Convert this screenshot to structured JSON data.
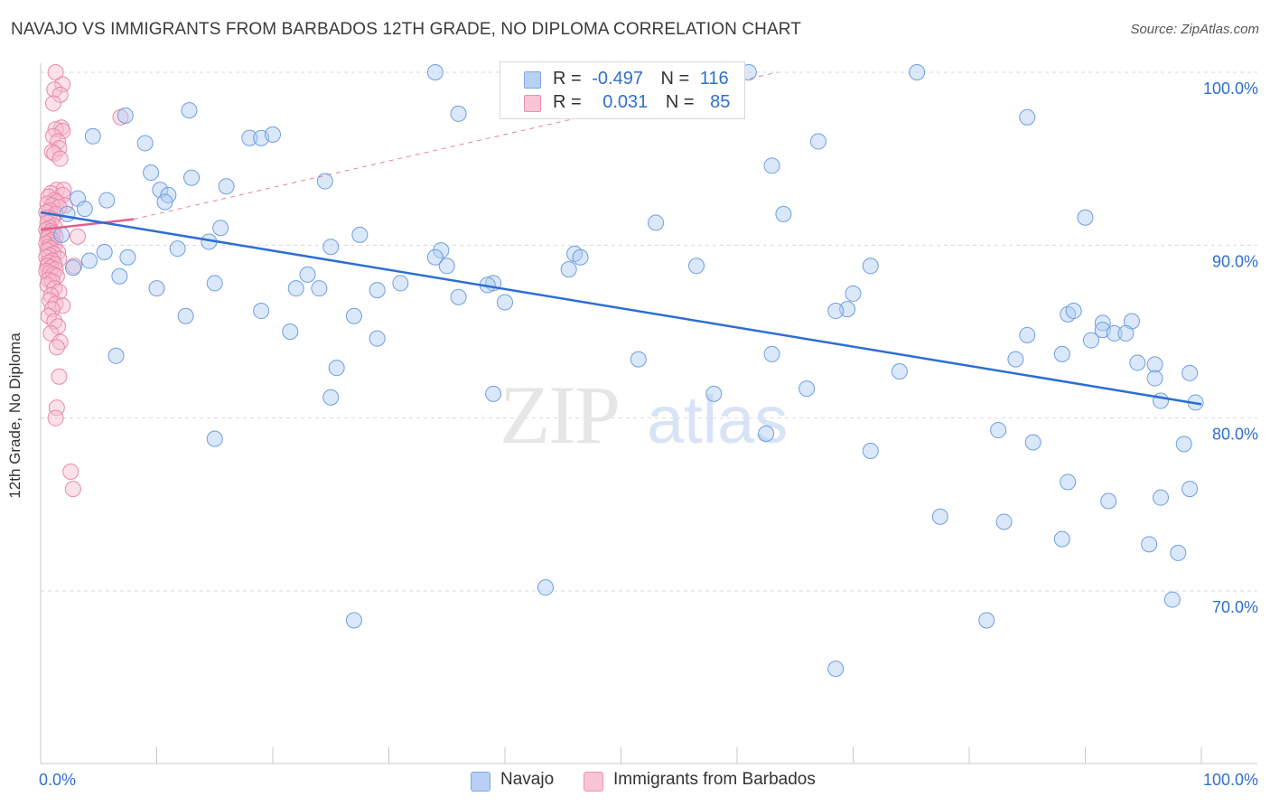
{
  "header": {
    "title": "NAVAJO VS IMMIGRANTS FROM BARBADOS 12TH GRADE, NO DIPLOMA CORRELATION CHART",
    "source": "Source: ZipAtlas.com"
  },
  "watermark": {
    "zip": "ZIP",
    "atlas": "atlas"
  },
  "legend": {
    "rows": [
      {
        "r_label": "R =",
        "r_value": "-0.497",
        "n_label": "N =",
        "n_value": "116"
      },
      {
        "r_label": "R =",
        "r_value": "0.031",
        "n_label": "N =",
        "n_value": "85"
      }
    ]
  },
  "bottom_legend": {
    "navajo": "Navajo",
    "barbados": "Immigrants from Barbados"
  },
  "colors": {
    "navajo_fill": "#aecbf5",
    "navajo_stroke": "#6f9ee0",
    "navajo_line": "#2b6fd1",
    "barbados_fill": "#f7bcd0",
    "barbados_stroke": "#e889a9",
    "barbados_line": "#e0608c",
    "tick_label": "#2e6fcf",
    "grid": "#d9d9d9"
  },
  "chart_data": {
    "type": "scatter",
    "title": "NAVAJO VS IMMIGRANTS FROM BARBADOS 12TH GRADE, NO DIPLOMA CORRELATION CHART",
    "xlabel": "",
    "ylabel": "12th Grade, No Diploma",
    "xlim": [
      0,
      100
    ],
    "ylim": [
      60,
      101.5
    ],
    "x_tick_labels": [
      "0.0%",
      "100.0%"
    ],
    "y_ticks": [
      {
        "value": 100,
        "label": "100.0%"
      },
      {
        "value": 90,
        "label": "90.0%"
      },
      {
        "value": 80,
        "label": "80.0%"
      },
      {
        "value": 70,
        "label": "70.0%"
      }
    ],
    "grid": true,
    "legend_position": "top-center",
    "series": [
      {
        "name": "Navajo",
        "r": -0.497,
        "n": 116,
        "trend": {
          "x": [
            0,
            100
          ],
          "y": [
            91.9,
            80.8
          ]
        },
        "points": [
          [
            34.0,
            100.0
          ],
          [
            55.0,
            100.0
          ],
          [
            61.0,
            100.0
          ],
          [
            59.5,
            100.0
          ],
          [
            75.5,
            100.0
          ],
          [
            7.3,
            97.5
          ],
          [
            12.8,
            97.8
          ],
          [
            36.0,
            97.6
          ],
          [
            85.0,
            97.4
          ],
          [
            4.5,
            96.3
          ],
          [
            18.0,
            96.2
          ],
          [
            19.0,
            96.2
          ],
          [
            20.0,
            96.4
          ],
          [
            9.0,
            95.9
          ],
          [
            67.0,
            96.0
          ],
          [
            63.0,
            94.6
          ],
          [
            9.5,
            94.2
          ],
          [
            13.0,
            93.9
          ],
          [
            24.5,
            93.7
          ],
          [
            16.0,
            93.4
          ],
          [
            10.3,
            93.2
          ],
          [
            11.0,
            92.9
          ],
          [
            3.2,
            92.7
          ],
          [
            5.7,
            92.6
          ],
          [
            10.7,
            92.5
          ],
          [
            3.8,
            92.1
          ],
          [
            2.3,
            91.8
          ],
          [
            64.0,
            91.8
          ],
          [
            90.0,
            91.6
          ],
          [
            53.0,
            91.3
          ],
          [
            15.5,
            91.0
          ],
          [
            27.5,
            90.6
          ],
          [
            1.8,
            90.6
          ],
          [
            14.5,
            90.2
          ],
          [
            25.0,
            89.9
          ],
          [
            5.5,
            89.6
          ],
          [
            11.8,
            89.8
          ],
          [
            34.5,
            89.7
          ],
          [
            4.2,
            89.1
          ],
          [
            7.5,
            89.3
          ],
          [
            34.0,
            89.3
          ],
          [
            46.0,
            89.5
          ],
          [
            46.5,
            89.3
          ],
          [
            35.0,
            88.8
          ],
          [
            23.0,
            88.3
          ],
          [
            45.5,
            88.6
          ],
          [
            71.5,
            88.8
          ],
          [
            56.5,
            88.8
          ],
          [
            2.8,
            88.7
          ],
          [
            6.8,
            88.2
          ],
          [
            15.0,
            87.8
          ],
          [
            31.0,
            87.8
          ],
          [
            39.0,
            87.8
          ],
          [
            38.5,
            87.7
          ],
          [
            10.0,
            87.5
          ],
          [
            22.0,
            87.5
          ],
          [
            24.0,
            87.5
          ],
          [
            29.0,
            87.4
          ],
          [
            36.0,
            87.0
          ],
          [
            40.0,
            86.7
          ],
          [
            70.0,
            87.2
          ],
          [
            69.5,
            86.3
          ],
          [
            68.5,
            86.2
          ],
          [
            19.0,
            86.2
          ],
          [
            27.0,
            85.9
          ],
          [
            12.5,
            85.9
          ],
          [
            88.5,
            86.0
          ],
          [
            89.0,
            86.2
          ],
          [
            91.5,
            85.5
          ],
          [
            94.0,
            85.6
          ],
          [
            21.5,
            85.0
          ],
          [
            29.0,
            84.6
          ],
          [
            85.0,
            84.8
          ],
          [
            91.5,
            85.1
          ],
          [
            92.5,
            84.9
          ],
          [
            93.5,
            84.9
          ],
          [
            90.5,
            84.5
          ],
          [
            6.5,
            83.6
          ],
          [
            51.5,
            83.4
          ],
          [
            63.0,
            83.7
          ],
          [
            88.0,
            83.7
          ],
          [
            84.0,
            83.4
          ],
          [
            94.5,
            83.2
          ],
          [
            96.0,
            83.1
          ],
          [
            25.5,
            82.9
          ],
          [
            74.0,
            82.7
          ],
          [
            99.0,
            82.6
          ],
          [
            96.0,
            82.3
          ],
          [
            66.0,
            81.7
          ],
          [
            58.0,
            81.4
          ],
          [
            39.0,
            81.4
          ],
          [
            25.0,
            81.2
          ],
          [
            96.5,
            81.0
          ],
          [
            99.5,
            80.9
          ],
          [
            82.5,
            79.3
          ],
          [
            62.5,
            79.1
          ],
          [
            15.0,
            78.8
          ],
          [
            85.5,
            78.6
          ],
          [
            98.5,
            78.5
          ],
          [
            71.5,
            78.1
          ],
          [
            88.5,
            76.3
          ],
          [
            99.0,
            75.9
          ],
          [
            92.0,
            75.2
          ],
          [
            96.5,
            75.4
          ],
          [
            77.5,
            74.3
          ],
          [
            83.0,
            74.0
          ],
          [
            88.0,
            73.0
          ],
          [
            95.5,
            72.7
          ],
          [
            98.0,
            72.2
          ],
          [
            43.5,
            70.2
          ],
          [
            97.5,
            69.5
          ],
          [
            27.0,
            68.3
          ],
          [
            81.5,
            68.3
          ],
          [
            68.5,
            65.5
          ]
        ]
      },
      {
        "name": "Immigrants from Barbados",
        "r": 0.031,
        "n": 85,
        "trend": {
          "x": [
            0,
            8.0
          ],
          "y": [
            90.9,
            91.5
          ]
        },
        "trend_extended": {
          "x": [
            8.0,
            63.5
          ],
          "y": [
            91.5,
            100.0
          ]
        },
        "points": [
          [
            0.9,
            100.0
          ],
          [
            1.5,
            99.3
          ],
          [
            0.8,
            99.0
          ],
          [
            1.3,
            98.7
          ],
          [
            0.7,
            98.2
          ],
          [
            6.5,
            97.4
          ],
          [
            1.4,
            96.8
          ],
          [
            0.9,
            96.7
          ],
          [
            1.5,
            96.6
          ],
          [
            0.7,
            96.3
          ],
          [
            1.1,
            96.0
          ],
          [
            1.2,
            95.6
          ],
          [
            0.6,
            95.4
          ],
          [
            0.8,
            95.3
          ],
          [
            1.3,
            95.0
          ],
          [
            1.0,
            93.2
          ],
          [
            1.6,
            93.2
          ],
          [
            0.5,
            93.0
          ],
          [
            1.5,
            92.9
          ],
          [
            0.3,
            92.8
          ],
          [
            0.8,
            92.6
          ],
          [
            1.0,
            92.5
          ],
          [
            0.2,
            92.4
          ],
          [
            1.7,
            92.3
          ],
          [
            0.6,
            92.3
          ],
          [
            1.2,
            92.2
          ],
          [
            0.4,
            92.0
          ],
          [
            0.1,
            91.9
          ],
          [
            0.9,
            91.8
          ],
          [
            0.3,
            91.6
          ],
          [
            0.6,
            91.5
          ],
          [
            0.2,
            91.3
          ],
          [
            0.8,
            91.1
          ],
          [
            0.4,
            91.0
          ],
          [
            0.1,
            90.9
          ],
          [
            0.5,
            90.8
          ],
          [
            0.7,
            90.7
          ],
          [
            0.3,
            90.6
          ],
          [
            2.8,
            90.5
          ],
          [
            0.9,
            90.5
          ],
          [
            0.2,
            90.4
          ],
          [
            0.6,
            90.3
          ],
          [
            0.4,
            90.2
          ],
          [
            0.1,
            90.1
          ],
          [
            0.8,
            90.0
          ],
          [
            0.3,
            89.9
          ],
          [
            0.5,
            89.8
          ],
          [
            0.2,
            89.7
          ],
          [
            1.1,
            89.6
          ],
          [
            0.7,
            89.5
          ],
          [
            0.4,
            89.4
          ],
          [
            0.1,
            89.3
          ],
          [
            1.2,
            89.2
          ],
          [
            0.6,
            89.1
          ],
          [
            0.3,
            89.0
          ],
          [
            0.8,
            88.9
          ],
          [
            0.2,
            88.8
          ],
          [
            2.5,
            88.8
          ],
          [
            0.5,
            88.7
          ],
          [
            0.9,
            88.6
          ],
          [
            0.1,
            88.5
          ],
          [
            0.4,
            88.4
          ],
          [
            0.7,
            88.3
          ],
          [
            1.0,
            88.2
          ],
          [
            0.3,
            88.0
          ],
          [
            0.6,
            87.9
          ],
          [
            0.2,
            87.7
          ],
          [
            0.8,
            87.5
          ],
          [
            1.2,
            87.3
          ],
          [
            0.5,
            87.1
          ],
          [
            0.4,
            86.8
          ],
          [
            0.9,
            86.6
          ],
          [
            1.5,
            86.5
          ],
          [
            0.6,
            86.3
          ],
          [
            0.3,
            85.9
          ],
          [
            0.8,
            85.6
          ],
          [
            1.1,
            85.3
          ],
          [
            0.5,
            84.9
          ],
          [
            1.3,
            84.4
          ],
          [
            1.0,
            84.1
          ],
          [
            1.2,
            82.4
          ],
          [
            1.0,
            80.6
          ],
          [
            0.9,
            80.0
          ],
          [
            2.2,
            76.9
          ],
          [
            2.4,
            75.9
          ]
        ]
      }
    ]
  }
}
